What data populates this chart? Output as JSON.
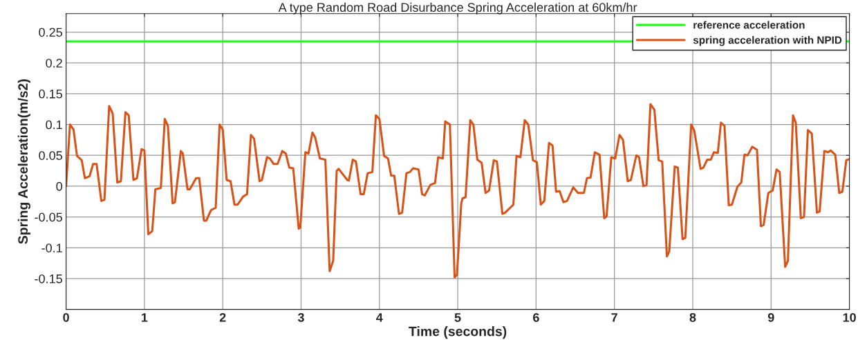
{
  "chart_data": {
    "type": "line",
    "title": "A type Random Road Disurbance Spring Acceleration at 60km/hr",
    "xlabel": "Time (seconds)",
    "ylabel": "Spring Acceleration(m/s2)",
    "xlim": [
      0,
      10
    ],
    "xticks": [
      0,
      1,
      2,
      3,
      4,
      5,
      6,
      7,
      8,
      9,
      10
    ],
    "ylim": [
      -0.2,
      0.28
    ],
    "yticks": [
      -0.15,
      -0.1,
      -0.05,
      0,
      0.05,
      0.1,
      0.15,
      0.2,
      0.25
    ],
    "grid": true,
    "legend": "top right",
    "line_style": "solid",
    "marker": "none",
    "series": [
      {
        "name": "reference acceleration",
        "color": "#1aff1a",
        "x": [
          0,
          10
        ],
        "values": [
          0.235,
          0.235
        ]
      },
      {
        "name": "spring acceleration with NPID",
        "color": "#d95319",
        "x": [
          0,
          0.05,
          0.095,
          0.14,
          0.2,
          0.24,
          0.3,
          0.345,
          0.39,
          0.45,
          0.49,
          0.55,
          0.595,
          0.654,
          0.7,
          0.758,
          0.8,
          0.86,
          0.905,
          0.964,
          1.0,
          1.05,
          1.1,
          1.14,
          1.21,
          1.26,
          1.3,
          1.36,
          1.39,
          1.465,
          1.49,
          1.55,
          1.58,
          1.66,
          1.7,
          1.76,
          1.79,
          1.85,
          1.91,
          1.96,
          2.0,
          2.05,
          2.1,
          2.15,
          2.19,
          2.26,
          2.31,
          2.36,
          2.4,
          2.47,
          2.5,
          2.565,
          2.6,
          2.65,
          2.7,
          2.76,
          2.805,
          2.85,
          2.9,
          2.97,
          2.99,
          3.055,
          3.095,
          3.145,
          3.18,
          3.24,
          3.31,
          3.365,
          3.41,
          3.455,
          3.48,
          3.59,
          3.61,
          3.66,
          3.7,
          3.76,
          3.8,
          3.85,
          3.91,
          3.955,
          4.0,
          4.06,
          4.11,
          4.15,
          4.19,
          4.25,
          4.29,
          4.345,
          4.39,
          4.43,
          4.5,
          4.545,
          4.58,
          4.65,
          4.71,
          4.75,
          4.81,
          4.84,
          4.9,
          4.96,
          4.99,
          5.045,
          5.06,
          5.1,
          5.16,
          5.2,
          5.25,
          5.305,
          5.355,
          5.4,
          5.46,
          5.5,
          5.57,
          5.605,
          5.71,
          5.75,
          5.8,
          5.855,
          5.9,
          5.96,
          6.01,
          6.06,
          6.105,
          6.165,
          6.21,
          6.255,
          6.3,
          6.35,
          6.395,
          6.475,
          6.535,
          6.61,
          6.65,
          6.695,
          6.75,
          6.81,
          6.87,
          6.9,
          6.96,
          7.01,
          7.065,
          7.11,
          7.17,
          7.21,
          7.28,
          7.315,
          7.37,
          7.41,
          7.46,
          7.51,
          7.565,
          7.61,
          7.67,
          7.7,
          7.77,
          7.81,
          7.87,
          7.905,
          7.98,
          8.02,
          8.1,
          8.135,
          8.185,
          8.23,
          8.27,
          8.32,
          8.36,
          8.405,
          8.46,
          8.5,
          8.57,
          8.62,
          8.66,
          8.7,
          8.76,
          8.82,
          8.87,
          8.905,
          8.965,
          9.02,
          9.07,
          9.11,
          9.18,
          9.215,
          9.28,
          9.315,
          9.38,
          9.42,
          9.47,
          9.52,
          9.585,
          9.62,
          9.68,
          9.73,
          9.76,
          9.82,
          9.87,
          9.91,
          9.96,
          10.0
        ],
        "values": [
          0,
          0.1,
          0.092,
          0.049,
          0.042,
          0.013,
          0.016,
          0.036,
          0.036,
          -0.024,
          -0.022,
          0.13,
          0.118,
          0.006,
          0.008,
          0.12,
          0.115,
          0.01,
          0.013,
          0.06,
          0.058,
          -0.078,
          -0.073,
          -0.005,
          -0.003,
          0.109,
          0.098,
          -0.028,
          -0.026,
          0.057,
          0.053,
          -0.005,
          -0.005,
          0.013,
          0.013,
          -0.056,
          -0.056,
          -0.039,
          -0.035,
          0.1,
          0.092,
          0.01,
          0.008,
          -0.03,
          -0.03,
          -0.017,
          -0.013,
          0.083,
          0.077,
          0.008,
          0.01,
          0.047,
          0.045,
          0.036,
          0.036,
          0.057,
          0.053,
          0.03,
          0.029,
          -0.069,
          -0.067,
          0.055,
          0.053,
          0.087,
          0.079,
          0.045,
          0.043,
          -0.138,
          -0.121,
          0.025,
          0.028,
          0.01,
          0.009,
          0.043,
          0.04,
          -0.013,
          -0.013,
          0.021,
          0.023,
          0.115,
          0.109,
          0.049,
          0.045,
          0.017,
          0.017,
          -0.045,
          -0.043,
          0.021,
          0.023,
          0.029,
          0.027,
          -0.013,
          -0.015,
          0.002,
          0.005,
          0.047,
          0.045,
          0.105,
          0.1,
          -0.148,
          -0.144,
          -0.028,
          -0.02,
          -0.018,
          0.107,
          0.1,
          0.043,
          0.038,
          -0.011,
          -0.007,
          0.042,
          0.04,
          -0.045,
          -0.043,
          -0.03,
          0.049,
          0.047,
          0.107,
          0.1,
          0.042,
          0.039,
          -0.03,
          -0.024,
          0.07,
          0.066,
          -0.009,
          -0.008,
          -0.026,
          -0.024,
          -0.002,
          -0.011,
          -0.011,
          0.013,
          0.014,
          0.055,
          0.051,
          -0.052,
          -0.049,
          0.047,
          0.045,
          0.083,
          0.075,
          0.008,
          0.01,
          0.05,
          0.047,
          0,
          0.002,
          0.133,
          0.124,
          0.042,
          0.04,
          -0.114,
          -0.106,
          0.032,
          0.03,
          -0.086,
          -0.084,
          0.1,
          0.09,
          0.028,
          0.03,
          0.043,
          0.043,
          0.055,
          0.054,
          0.103,
          0.098,
          -0.031,
          -0.03,
          -0.001,
          0.006,
          0.051,
          0.05,
          0.064,
          0.059,
          -0.065,
          -0.063,
          -0.011,
          -0.007,
          0.027,
          0.023,
          -0.131,
          -0.121,
          0.115,
          0.103,
          -0.052,
          -0.05,
          0.091,
          0.085,
          -0.043,
          -0.041,
          0.057,
          0.055,
          0.058,
          0.051,
          -0.011,
          -0.009,
          0.042,
          0.044
        ]
      }
    ]
  }
}
